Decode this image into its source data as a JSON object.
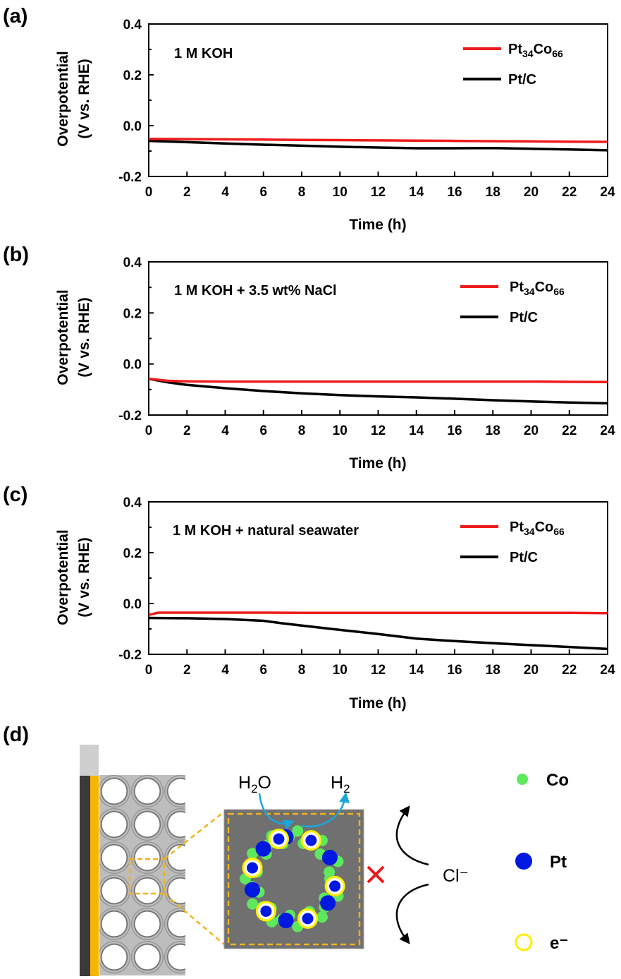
{
  "chart_data": [
    {
      "type": "line",
      "panel_label": "(a)",
      "condition": "1 M KOH",
      "xlabel": "Time (h)",
      "ylabel_line1": "Overpotential",
      "ylabel_line2": "(V vs. RHE)",
      "xlim": [
        0,
        24
      ],
      "ylim": [
        -0.2,
        0.4
      ],
      "x_ticks": [
        0,
        2,
        4,
        6,
        8,
        10,
        12,
        14,
        16,
        18,
        20,
        22,
        24
      ],
      "y_ticks": [
        -0.2,
        0.0,
        0.2,
        0.4
      ],
      "y_tick_labels": [
        "-0.2",
        "0.0",
        "0.2",
        "0.4"
      ],
      "legend_position": "top-right",
      "series": [
        {
          "name_base": "Pt",
          "name_sub1": "34",
          "name_mid": "Co",
          "name_sub2": "66",
          "color": "#ee1c1c",
          "x": [
            0,
            2,
            4,
            6,
            8,
            10,
            12,
            14,
            16,
            18,
            20,
            22,
            24
          ],
          "y": [
            -0.052,
            -0.053,
            -0.054,
            -0.055,
            -0.056,
            -0.057,
            -0.058,
            -0.059,
            -0.06,
            -0.061,
            -0.062,
            -0.063,
            -0.064
          ]
        },
        {
          "name": "Pt/C",
          "color": "#000000",
          "x": [
            0,
            2,
            4,
            6,
            8,
            10,
            12,
            14,
            16,
            18,
            20,
            22,
            24
          ],
          "y": [
            -0.06,
            -0.065,
            -0.07,
            -0.075,
            -0.079,
            -0.083,
            -0.086,
            -0.089,
            -0.089,
            -0.088,
            -0.091,
            -0.094,
            -0.097
          ]
        }
      ]
    },
    {
      "type": "line",
      "panel_label": "(b)",
      "condition": "1 M KOH + 3.5 wt% NaCl",
      "xlabel": "Time (h)",
      "ylabel_line1": "Overpotential",
      "ylabel_line2": "(V vs. RHE)",
      "xlim": [
        0,
        24
      ],
      "ylim": [
        -0.2,
        0.4
      ],
      "x_ticks": [
        0,
        2,
        4,
        6,
        8,
        10,
        12,
        14,
        16,
        18,
        20,
        22,
        24
      ],
      "y_ticks": [
        -0.2,
        0.0,
        0.2,
        0.4
      ],
      "y_tick_labels": [
        "-0.2",
        "0.0",
        "0.2",
        "0.4"
      ],
      "legend_position": "top-right",
      "series": [
        {
          "name_base": "Pt",
          "name_sub1": "34",
          "name_mid": "Co",
          "name_sub2": "66",
          "color": "#ee1c1c",
          "x": [
            0,
            1,
            2,
            4,
            6,
            8,
            10,
            12,
            14,
            16,
            18,
            20,
            22,
            24
          ],
          "y": [
            -0.058,
            -0.066,
            -0.068,
            -0.069,
            -0.069,
            -0.069,
            -0.069,
            -0.069,
            -0.069,
            -0.069,
            -0.069,
            -0.069,
            -0.07,
            -0.071
          ]
        },
        {
          "name": "Pt/C",
          "color": "#000000",
          "x": [
            0,
            1,
            2,
            4,
            6,
            8,
            10,
            12,
            14,
            16,
            18,
            20,
            22,
            24
          ],
          "y": [
            -0.058,
            -0.072,
            -0.082,
            -0.095,
            -0.106,
            -0.115,
            -0.122,
            -0.127,
            -0.131,
            -0.136,
            -0.142,
            -0.147,
            -0.151,
            -0.154
          ]
        }
      ]
    },
    {
      "type": "line",
      "panel_label": "(c)",
      "condition": "1 M KOH + natural seawater",
      "xlabel": "Time (h)",
      "ylabel_line1": "Overpotential",
      "ylabel_line2": "(V vs. RHE)",
      "xlim": [
        0,
        24
      ],
      "ylim": [
        -0.2,
        0.4
      ],
      "x_ticks": [
        0,
        2,
        4,
        6,
        8,
        10,
        12,
        14,
        16,
        18,
        20,
        22,
        24
      ],
      "y_ticks": [
        -0.2,
        0.0,
        0.2,
        0.4
      ],
      "y_tick_labels": [
        "-0.2",
        "0.0",
        "0.2",
        "0.4"
      ],
      "legend_position": "top-right",
      "series": [
        {
          "name_base": "Pt",
          "name_sub1": "34",
          "name_mid": "Co",
          "name_sub2": "66",
          "color": "#ee1c1c",
          "x": [
            0,
            0.5,
            2,
            4,
            6,
            8,
            10,
            12,
            14,
            16,
            18,
            20,
            22,
            24
          ],
          "y": [
            -0.045,
            -0.036,
            -0.036,
            -0.036,
            -0.036,
            -0.037,
            -0.037,
            -0.037,
            -0.037,
            -0.037,
            -0.037,
            -0.037,
            -0.037,
            -0.038
          ]
        },
        {
          "name": "Pt/C",
          "color": "#000000",
          "x": [
            0,
            2,
            4,
            6,
            7,
            8,
            10,
            12,
            14,
            16,
            18,
            20,
            22,
            24
          ],
          "y": [
            -0.057,
            -0.058,
            -0.061,
            -0.068,
            -0.078,
            -0.087,
            -0.104,
            -0.12,
            -0.138,
            -0.148,
            -0.156,
            -0.164,
            -0.171,
            -0.179
          ]
        }
      ]
    }
  ],
  "schematic": {
    "panel_label": "(d)",
    "h2o_base": "H",
    "h2o_sub": "2",
    "h2o_end": "O",
    "h2_base": "H",
    "h2_sub": "2",
    "chloride": "Cl⁻",
    "legend": {
      "co": "Co",
      "pt": "Pt",
      "e": "e⁻"
    },
    "colors": {
      "co": "#5ee85e",
      "pt": "#0018e0",
      "e_ring": "#ffee00",
      "cross": "#e81818",
      "arrow": "#1aa6d8",
      "dashed": "#f2b21c",
      "gold": "#f7b500",
      "dark": "#3a3a3a"
    }
  }
}
